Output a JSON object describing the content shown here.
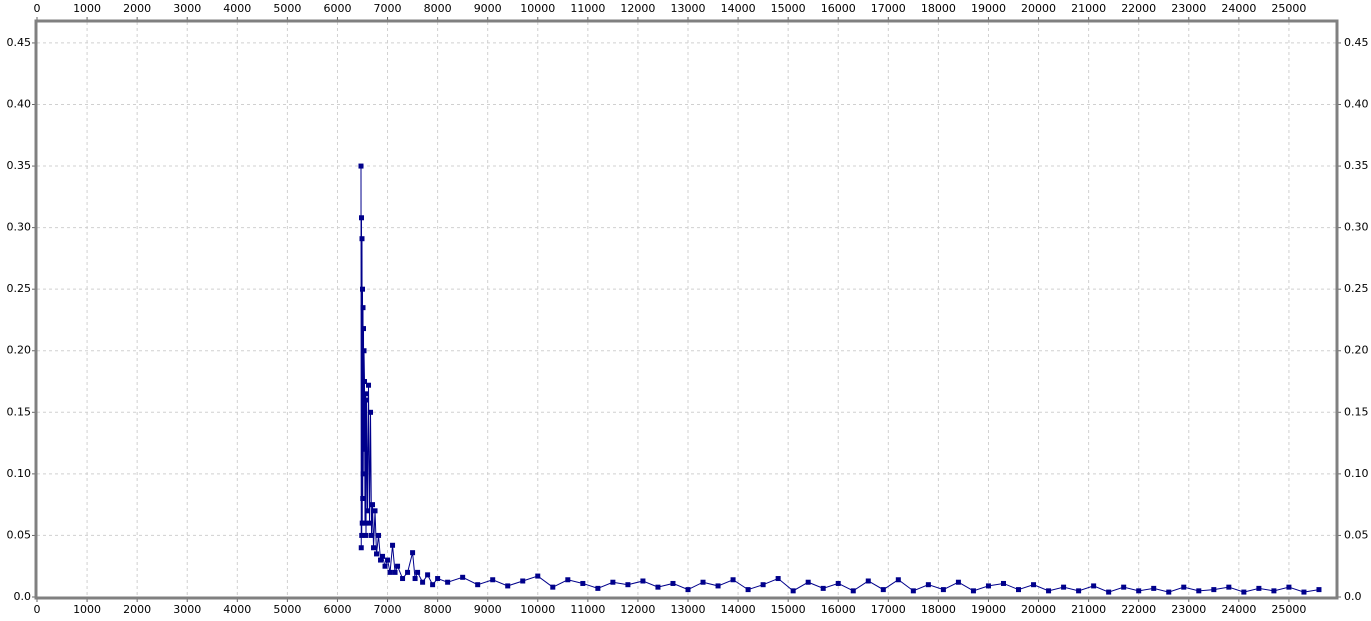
{
  "chart_data": {
    "type": "line",
    "x": [
      6470,
      6475,
      6480,
      6485,
      6490,
      6495,
      6500,
      6505,
      6510,
      6515,
      6520,
      6525,
      6530,
      6540,
      6550,
      6560,
      6570,
      6580,
      6600,
      6620,
      6640,
      6660,
      6680,
      6700,
      6720,
      6750,
      6780,
      6820,
      6860,
      6900,
      6950,
      7000,
      7050,
      7100,
      7150,
      7200,
      7300,
      7400,
      7500,
      7550,
      7600,
      7700,
      7800,
      7900,
      8000,
      8200,
      8500,
      8800,
      9100,
      9400,
      9700,
      10000,
      10300,
      10600,
      10900,
      11200,
      11500,
      11800,
      12100,
      12400,
      12700,
      13000,
      13300,
      13600,
      13900,
      14200,
      14500,
      14800,
      15100,
      15400,
      15700,
      16000,
      16300,
      16600,
      16900,
      17200,
      17500,
      17800,
      18100,
      18400,
      18700,
      19000,
      19300,
      19600,
      19900,
      20200,
      20500,
      20800,
      21100,
      21400,
      21700,
      22000,
      22300,
      22600,
      22900,
      23200,
      23500,
      23800,
      24100,
      24400,
      24700,
      25000,
      25300,
      25600
    ],
    "series": [
      {
        "color": "#00008b",
        "values": [
          0.35,
          0.04,
          0.308,
          0.05,
          0.291,
          0.06,
          0.25,
          0.08,
          0.235,
          0.1,
          0.218,
          0.12,
          0.2,
          0.175,
          0.06,
          0.165,
          0.05,
          0.16,
          0.07,
          0.172,
          0.06,
          0.15,
          0.05,
          0.075,
          0.04,
          0.07,
          0.035,
          0.05,
          0.03,
          0.033,
          0.025,
          0.03,
          0.02,
          0.042,
          0.02,
          0.025,
          0.015,
          0.02,
          0.036,
          0.015,
          0.02,
          0.012,
          0.018,
          0.01,
          0.015,
          0.012,
          0.016,
          0.01,
          0.014,
          0.009,
          0.013,
          0.017,
          0.008,
          0.014,
          0.011,
          0.007,
          0.012,
          0.01,
          0.013,
          0.008,
          0.011,
          0.006,
          0.012,
          0.009,
          0.014,
          0.006,
          0.01,
          0.015,
          0.005,
          0.012,
          0.007,
          0.011,
          0.005,
          0.013,
          0.006,
          0.014,
          0.005,
          0.01,
          0.006,
          0.012,
          0.005,
          0.009,
          0.011,
          0.006,
          0.01,
          0.005,
          0.008,
          0.005,
          0.009,
          0.004,
          0.008,
          0.005,
          0.007,
          0.004,
          0.008,
          0.005,
          0.006,
          0.008,
          0.004,
          0.007,
          0.005,
          0.008,
          0.004,
          0.006
        ]
      }
    ],
    "xlim": [
      0,
      25940
    ],
    "ylim": [
      0,
      0.467
    ],
    "xticks": [
      0,
      1000,
      2000,
      3000,
      4000,
      5000,
      6000,
      7000,
      8000,
      9000,
      10000,
      11000,
      12000,
      13000,
      14000,
      15000,
      16000,
      17000,
      18000,
      19000,
      20000,
      21000,
      22000,
      23000,
      24000,
      25000
    ],
    "yticks": [
      {
        "value": 0,
        "label": "0.0"
      },
      0.05,
      {
        "value": 0.1,
        "label": "0.10"
      },
      0.15,
      {
        "value": 0.2,
        "label": "0.20"
      },
      0.25,
      {
        "value": 0.3,
        "label": "0.30"
      },
      0.35,
      {
        "value": 0.4,
        "label": "0.40"
      },
      0.45
    ],
    "grid": true
  }
}
